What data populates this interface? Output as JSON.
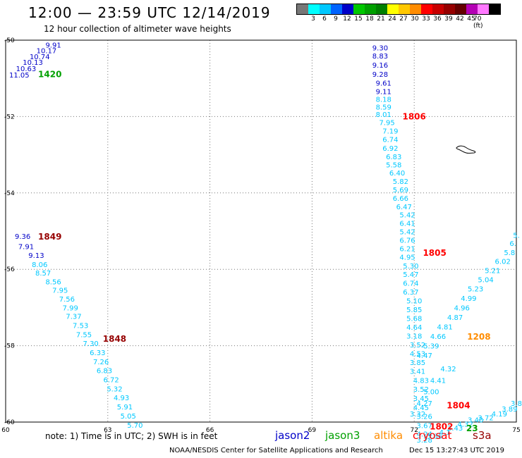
{
  "header": {
    "title": "12:00 — 23:59 UTC 12/14/2019",
    "subtitle": "12 hour collection of altimeter wave heights"
  },
  "legend": {
    "colors": [
      "#777777",
      "#00ffff",
      "#00c8ff",
      "#0064ff",
      "#0000c8",
      "#00c800",
      "#00a000",
      "#008000",
      "#ffff00",
      "#ffc800",
      "#ff8c00",
      "#ff0000",
      "#c80000",
      "#960000",
      "#640000",
      "#b400b4",
      "#ff78ff",
      "#000000"
    ],
    "labels": [
      "3",
      "6",
      "9",
      "12",
      "15",
      "18",
      "21",
      "24",
      "27",
      "30",
      "33",
      "36",
      "39",
      "42",
      "45",
      "70 (ft)"
    ]
  },
  "footer": {
    "note": "note:  1) Time is in UTC;  2) SWH is in feet",
    "missions": [
      {
        "name": "jason2",
        "color": "#0000c8"
      },
      {
        "name": "jason3",
        "color": "#00a000"
      },
      {
        "name": "altika",
        "color": "#ff8c00"
      },
      {
        "name": "cryosat",
        "color": "#ff0000"
      },
      {
        "name": "s3a",
        "color": "#960000"
      }
    ],
    "credit": "NOAA/NESDIS Center for Satellite Applications and Research",
    "timestamp": "Dec 15 13:27:43 UTC 2019"
  },
  "map": {
    "lon_range": [
      60,
      75
    ],
    "lat_range": [
      -60,
      -50
    ],
    "lon_ticks": [
      "60",
      "63",
      "66",
      "69",
      "72",
      "75"
    ],
    "lat_ticks": [
      "-50",
      "-52",
      "-54",
      "-56",
      "-58",
      "-60"
    ],
    "colors": {
      "jason2": "#0000c8",
      "jason3": "#00a000",
      "cyan": "#00c8ff",
      "cryosat": "#ff0000",
      "s3a": "#960000",
      "altika": "#ff8c00",
      "dark": "#444444"
    },
    "tracks": [
      {
        "c": "jason2",
        "lon": [
          61.4,
          61.2,
          61.0,
          60.8,
          60.6,
          60.4
        ],
        "lat": [
          -50.12,
          -50.27,
          -50.42,
          -50.57,
          -50.74,
          -50.9
        ],
        "v": [
          "9.91",
          "10.17",
          "10.74",
          "10.13",
          "10.63",
          "11.05"
        ]
      },
      {
        "c": "jason2",
        "lon": [
          71.0,
          71.0,
          71.0,
          71.0,
          71.1,
          71.1
        ],
        "lat": [
          -50.19,
          -50.41,
          -50.65,
          -50.89,
          -51.12,
          -51.34
        ],
        "v": [
          "9.30",
          "8.83",
          "9.16",
          "9.28",
          "9.61",
          "9.11"
        ]
      },
      {
        "c": "cyan",
        "lon": [
          71.1,
          71.1,
          71.1,
          71.2,
          71.3,
          71.3,
          71.3,
          71.4,
          71.4,
          71.5,
          71.6,
          71.6,
          71.6,
          71.7,
          71.8,
          71.8,
          71.8,
          71.8,
          71.8,
          71.8,
          71.9,
          71.9,
          71.9,
          71.9,
          72.0,
          72.0,
          72.0,
          72.0,
          72.0,
          72.1,
          72.1,
          72.1,
          72.1,
          72.2,
          72.2,
          72.2,
          72.2,
          72.3,
          72.3,
          72.3
        ],
        "lat": [
          -51.54,
          -51.74,
          -51.94,
          -52.15,
          -52.37,
          -52.59,
          -52.82,
          -53.04,
          -53.26,
          -53.47,
          -53.69,
          -53.91,
          -54.13,
          -54.35,
          -54.57,
          -54.79,
          -55.01,
          -55.23,
          -55.45,
          -55.67,
          -55.9,
          -56.13,
          -56.36,
          -56.59,
          -56.82,
          -57.05,
          -57.28,
          -57.51,
          -57.74,
          -57.97,
          -58.2,
          -58.43,
          -58.66,
          -58.9,
          -59.13,
          -59.37,
          -59.61,
          -59.84,
          -60.08,
          -60.3
        ],
        "v": [
          "8.18",
          "8.59",
          "8.01",
          "7.95",
          "7.19",
          "6.74",
          "6.92",
          "6.83",
          "5.58",
          "6.40",
          "5.82",
          "5.69",
          "6.66",
          "6.47",
          "5.42",
          "6.41",
          "5.42",
          "6.76",
          "6.21",
          "4.95",
          "5.30",
          "5.47",
          "6.74",
          "6.37",
          "5.10",
          "5.85",
          "5.68",
          "4.64",
          "3.18",
          "3.52",
          "4.53",
          "3.85",
          "3.41",
          "4.83",
          "3.52",
          "3.45",
          "4.45",
          "3.26",
          "3.67",
          "4.24"
        ]
      },
      {
        "c": "cyan",
        "lon": [
          75.0,
          74.9,
          74.8,
          74.6,
          74.3,
          74.1,
          73.8,
          73.6,
          73.4,
          73.2,
          72.9,
          72.7,
          72.5,
          72.3
        ],
        "lat": [
          -55.1,
          -55.31,
          -55.55,
          -55.78,
          -56.02,
          -56.26,
          -56.5,
          -56.75,
          -57.0,
          -57.25,
          -57.5,
          -57.75,
          -58.0,
          -58.25
        ],
        "v": [
          "5.",
          "6.",
          "5.8",
          "6.02",
          "5.21",
          "5.04",
          "5.23",
          "4.99",
          "4.96",
          "4.87",
          "4.81",
          "4.66",
          "5.39",
          "4.47"
        ]
      },
      {
        "c": "cyan",
        "lon": [
          73.0,
          72.7,
          72.5,
          72.3,
          72.1
        ],
        "lat": [
          -58.6,
          -58.9,
          -59.2,
          -59.5,
          -59.78
        ],
        "v": [
          "4.32",
          "4.41",
          "5.00",
          "4.27",
          "3.32"
        ]
      },
      {
        "c": "cyan",
        "lon": [
          75.0,
          74.8,
          74.5,
          74.1,
          73.8,
          73.5,
          73.2,
          72.9,
          72.6,
          72.3
        ],
        "lat": [
          -59.5,
          -59.65,
          -59.78,
          -59.88,
          -59.94,
          -60.05,
          -60.15,
          -60.26,
          -60.36,
          -60.46
        ],
        "v": [
          "3.8",
          "3.89",
          "4.19",
          "3.72",
          "3.40",
          "4.32",
          "3.43",
          "4.1",
          "3.86",
          "3.28"
        ]
      },
      {
        "c": "jason2",
        "lon": [
          60.5,
          60.6,
          60.9
        ],
        "lat": [
          -55.13,
          -55.4,
          -55.63
        ],
        "v": [
          "9.36",
          "7.91",
          "9.13"
        ]
      },
      {
        "c": "cyan",
        "lon": [
          61.0,
          61.1,
          61.4,
          61.6,
          61.8,
          61.9,
          62.0,
          62.2,
          62.3,
          62.5,
          62.7,
          62.8,
          62.9,
          63.1,
          63.2,
          63.4,
          63.5
        ],
        "lat": [
          -55.87,
          -56.09,
          -56.32,
          -56.54,
          -56.77,
          -57.0,
          -57.22,
          -57.46,
          -57.7,
          -57.93,
          -58.17,
          -58.41,
          -58.64,
          -58.88,
          -59.12,
          -59.35,
          -59.59
        ],
        "v": [
          "8.06",
          "8.57",
          "8.56",
          "7.95",
          "7.56",
          "7.99",
          "7.37",
          "7.53",
          "7.55",
          "7.30",
          "6.33",
          "7.26",
          "6.83",
          "6.72",
          "5.32",
          "4.93",
          "5.91"
        ]
      },
      {
        "c": "cyan",
        "lon": [
          63.6,
          63.8
        ],
        "lat": [
          -59.83,
          -60.07
        ],
        "v": [
          "5.05",
          "5.70"
        ]
      }
    ],
    "time_labels": [
      {
        "t": "1420",
        "c": "jason3",
        "lon": 61.3,
        "lat": -50.88
      },
      {
        "t": "1806",
        "c": "cryosat",
        "lon": 72.0,
        "lat": -51.98
      },
      {
        "t": "1849",
        "c": "s3a",
        "lon": 61.3,
        "lat": -55.13
      },
      {
        "t": "1805",
        "c": "cryosat",
        "lon": 72.6,
        "lat": -55.55
      },
      {
        "t": "1208",
        "c": "altika",
        "lon": 73.9,
        "lat": -57.75
      },
      {
        "t": "1848",
        "c": "s3a",
        "lon": 63.2,
        "lat": -57.8
      },
      {
        "t": "1804",
        "c": "cryosat",
        "lon": 73.3,
        "lat": -59.55
      },
      {
        "t": "1802",
        "c": "cryosat",
        "lon": 72.8,
        "lat": -60.1
      },
      {
        "t": "23",
        "c": "jason3",
        "lon": 73.7,
        "lat": -60.15
      }
    ]
  }
}
